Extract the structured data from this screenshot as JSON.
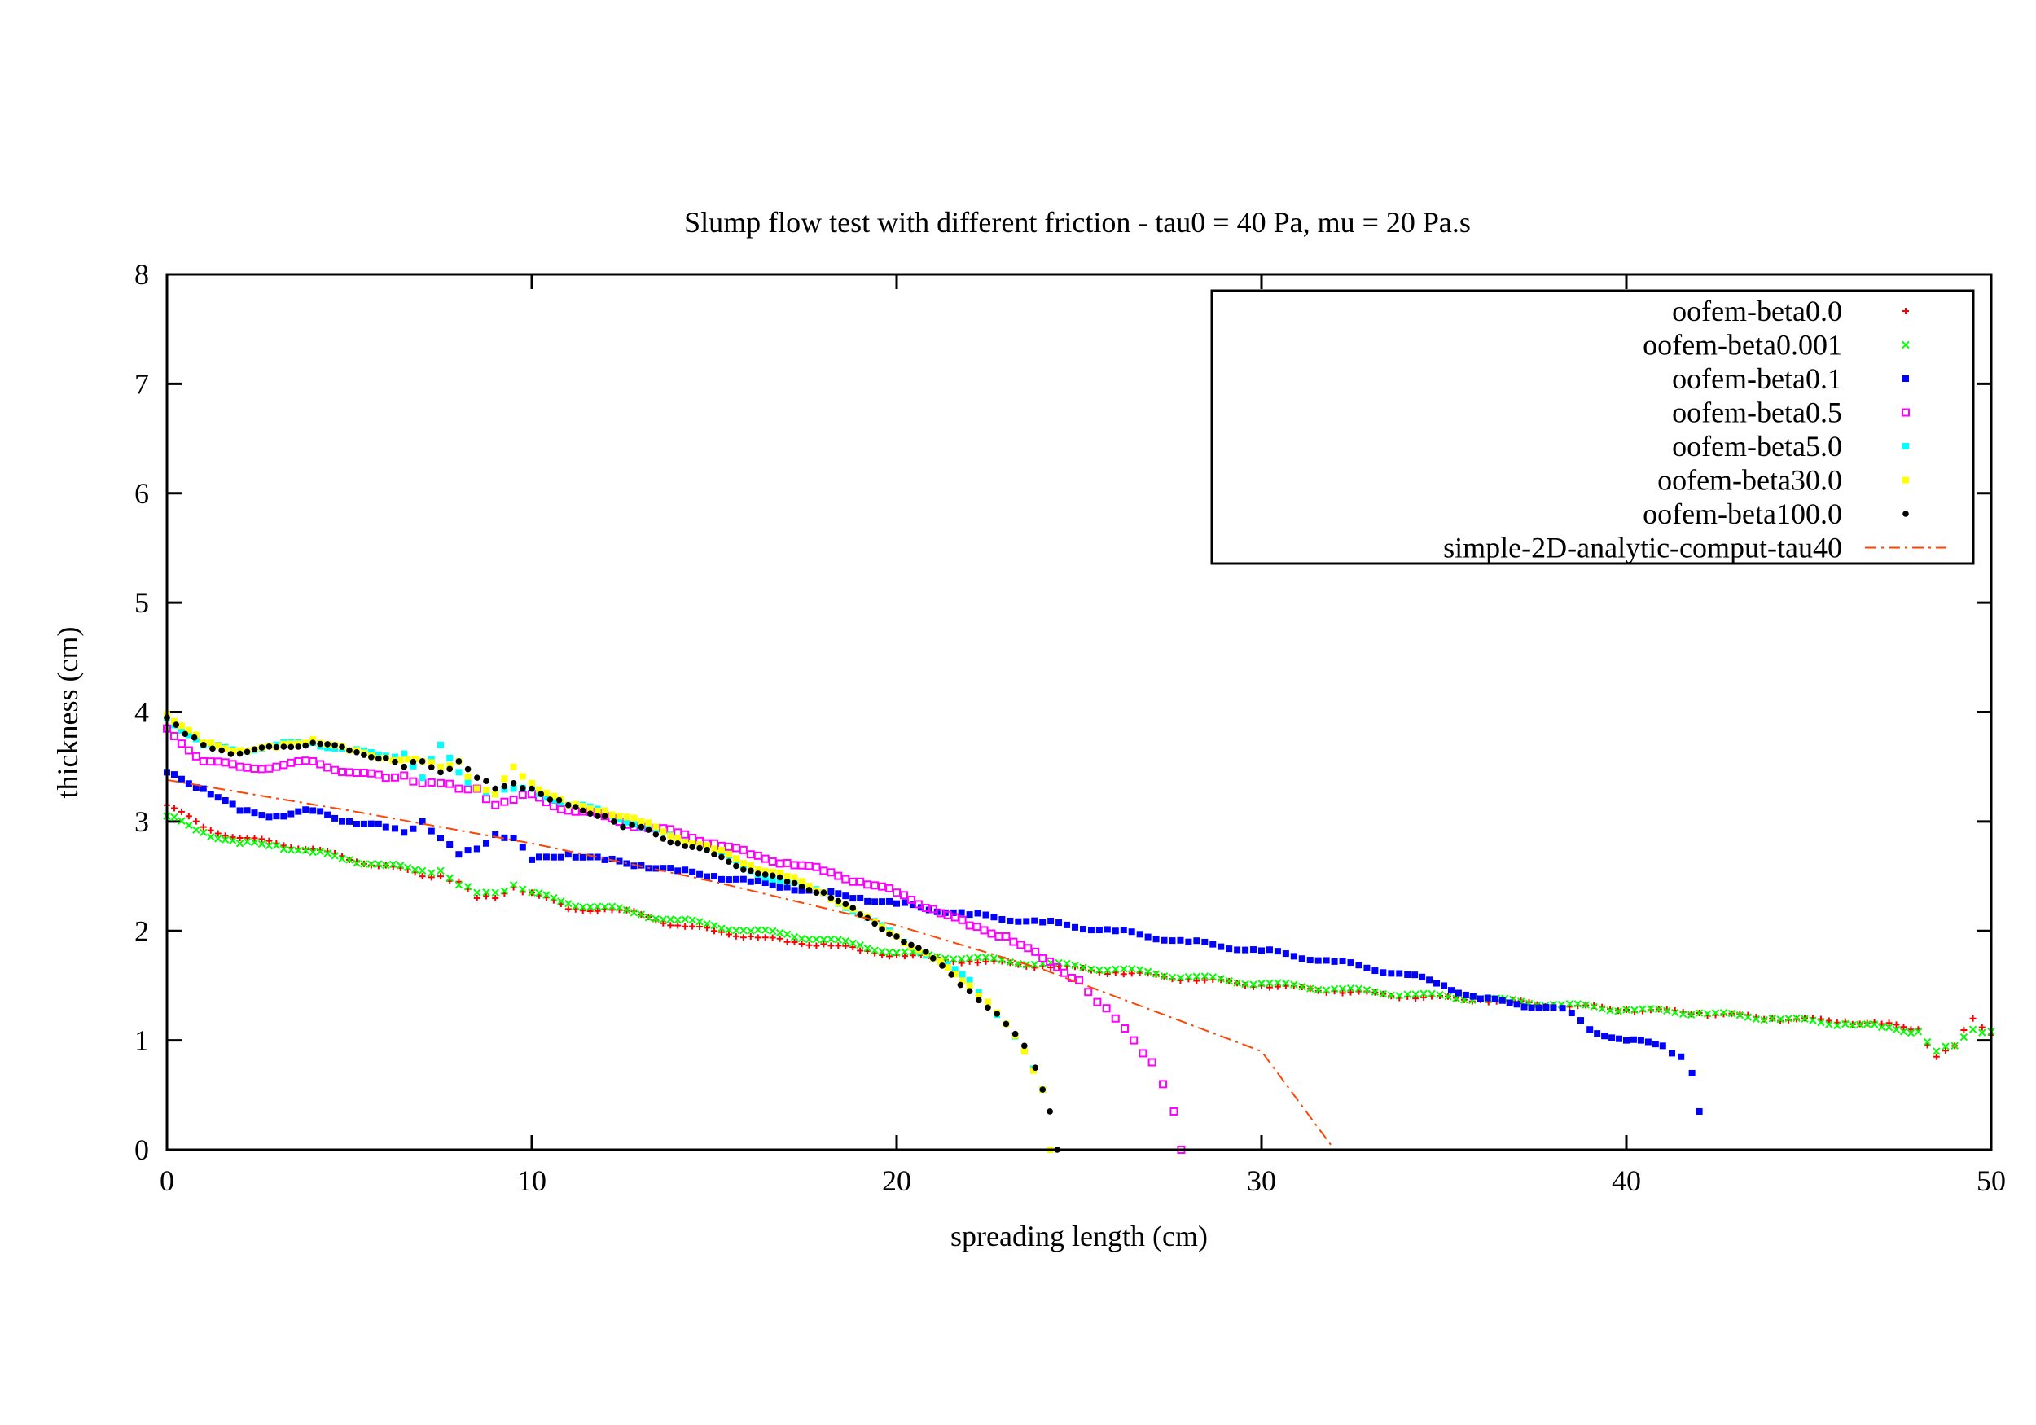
{
  "chart_data": {
    "type": "scatter",
    "title": "Slump flow test with different friction - tau0 = 40 Pa, mu = 20 Pa.s",
    "xlabel": "spreading length (cm)",
    "ylabel": "thickness (cm)",
    "xlim": [
      0,
      50
    ],
    "ylim": [
      0,
      8
    ],
    "xticks": [
      "0",
      "10",
      "20",
      "30",
      "40",
      "50"
    ],
    "yticks": [
      "0",
      "1",
      "2",
      "3",
      "4",
      "5",
      "6",
      "7",
      "8"
    ],
    "legend_position": "top-right",
    "series": [
      {
        "name": "oofem-beta0.0",
        "marker": "plus",
        "color": "#ff0000",
        "x": [
          0,
          1,
          2,
          3,
          4,
          5,
          6,
          7,
          7.5,
          8,
          8.5,
          9,
          9.5,
          10,
          11,
          12,
          13,
          14,
          15,
          16,
          17,
          18,
          19,
          20,
          22,
          24,
          26,
          28,
          30,
          32,
          34,
          36,
          38,
          40,
          42,
          44,
          46,
          47,
          48,
          48.5,
          49,
          49.5,
          50
        ],
        "y": [
          3.15,
          2.95,
          2.85,
          2.8,
          2.75,
          2.65,
          2.6,
          2.5,
          2.5,
          2.45,
          2.3,
          2.3,
          2.4,
          2.35,
          2.2,
          2.2,
          2.15,
          2.05,
          2.0,
          1.95,
          1.9,
          1.88,
          1.82,
          1.78,
          1.72,
          1.68,
          1.62,
          1.56,
          1.5,
          1.45,
          1.4,
          1.37,
          1.32,
          1.28,
          1.25,
          1.2,
          1.17,
          1.15,
          1.1,
          0.85,
          0.95,
          1.2,
          1.05
        ]
      },
      {
        "name": "oofem-beta0.001",
        "marker": "cross",
        "color": "#00ff00",
        "x": [
          0,
          1,
          2,
          3,
          4,
          5,
          6,
          7,
          7.5,
          8,
          8.5,
          9,
          9.5,
          10,
          11,
          12,
          13,
          14,
          15,
          16,
          17,
          18,
          19,
          20,
          22,
          24,
          26,
          28,
          30,
          32,
          34,
          36,
          38,
          40,
          42,
          44,
          46,
          47,
          48,
          48.5,
          49,
          49.5,
          50
        ],
        "y": [
          3.05,
          2.9,
          2.8,
          2.78,
          2.72,
          2.65,
          2.6,
          2.55,
          2.55,
          2.42,
          2.35,
          2.35,
          2.42,
          2.35,
          2.25,
          2.22,
          2.15,
          2.1,
          2.05,
          2.0,
          1.97,
          1.92,
          1.87,
          1.8,
          1.75,
          1.7,
          1.65,
          1.58,
          1.52,
          1.47,
          1.42,
          1.38,
          1.33,
          1.28,
          1.25,
          1.2,
          1.15,
          1.12,
          1.08,
          0.9,
          0.95,
          1.1,
          1.08
        ]
      },
      {
        "name": "oofem-beta0.1",
        "marker": "square-filled",
        "color": "#0000ff",
        "x": [
          0,
          1,
          2,
          3,
          4,
          5,
          6,
          6.5,
          7,
          7.5,
          8,
          8.5,
          9,
          9.5,
          10,
          11,
          12,
          13,
          14,
          15,
          16,
          17,
          18,
          19,
          20,
          22,
          24,
          26,
          28,
          30,
          32,
          34,
          35,
          36,
          37,
          38,
          38.5,
          39,
          40,
          41,
          41.5,
          41.8,
          42
        ],
        "y": [
          3.45,
          3.3,
          3.1,
          3.05,
          3.1,
          3.0,
          2.95,
          2.9,
          3.0,
          2.85,
          2.7,
          2.75,
          2.88,
          2.85,
          2.65,
          2.7,
          2.65,
          2.6,
          2.55,
          2.5,
          2.45,
          2.4,
          2.35,
          2.3,
          2.25,
          2.15,
          2.08,
          2.0,
          1.9,
          1.82,
          1.72,
          1.6,
          1.5,
          1.38,
          1.33,
          1.3,
          1.25,
          1.1,
          1.0,
          0.95,
          0.85,
          0.7,
          0.35
        ]
      },
      {
        "name": "oofem-beta0.5",
        "marker": "square-open",
        "color": "#ff00ff",
        "x": [
          0,
          1,
          2,
          3,
          4,
          5,
          6,
          6.5,
          7,
          7.5,
          8,
          8.5,
          9,
          9.5,
          10,
          11,
          12,
          13,
          14,
          15,
          16,
          17,
          18,
          19,
          20,
          21,
          22,
          23,
          24,
          25,
          25.5,
          26,
          26.5,
          27,
          27.3,
          27.6,
          27.8
        ],
        "y": [
          3.85,
          3.55,
          3.5,
          3.5,
          3.55,
          3.45,
          3.4,
          3.42,
          3.35,
          3.35,
          3.3,
          3.3,
          3.15,
          3.2,
          3.25,
          3.1,
          3.05,
          2.95,
          2.9,
          2.8,
          2.7,
          2.62,
          2.55,
          2.45,
          2.35,
          2.2,
          2.05,
          1.95,
          1.75,
          1.55,
          1.35,
          1.2,
          1.0,
          0.8,
          0.6,
          0.35,
          0.0
        ]
      },
      {
        "name": "oofem-beta5.0",
        "marker": "square-filled",
        "color": "#00ffff",
        "x": [
          0,
          1,
          2,
          3,
          4,
          5,
          6,
          6.5,
          7,
          7.5,
          8,
          8.5,
          9,
          9.5,
          10,
          11,
          12,
          13,
          14,
          15,
          16,
          17,
          18,
          19,
          20,
          21,
          22,
          22.5,
          23,
          23.5,
          24,
          24.2
        ],
        "y": [
          3.95,
          3.7,
          3.65,
          3.7,
          3.72,
          3.65,
          3.6,
          3.62,
          3.4,
          3.7,
          3.45,
          3.3,
          3.25,
          3.3,
          3.3,
          3.15,
          3.1,
          2.95,
          2.85,
          2.75,
          2.55,
          2.45,
          2.35,
          2.15,
          1.95,
          1.75,
          1.55,
          1.35,
          1.15,
          0.9,
          0.55,
          0.0
        ]
      },
      {
        "name": "oofem-beta30.0",
        "marker": "square-filled",
        "color": "#ffff00",
        "x": [
          0,
          1,
          2,
          3,
          4,
          5,
          6,
          7,
          7.5,
          8,
          8.5,
          9,
          9.5,
          10,
          11,
          12,
          13,
          14,
          15,
          16,
          17,
          18,
          19,
          20,
          21,
          22,
          22.5,
          23,
          23.5,
          24,
          24.2
        ],
        "y": [
          3.98,
          3.72,
          3.65,
          3.68,
          3.75,
          3.65,
          3.58,
          3.55,
          3.5,
          3.55,
          3.3,
          3.25,
          3.5,
          3.35,
          3.15,
          3.1,
          3.0,
          2.85,
          2.75,
          2.6,
          2.5,
          2.35,
          2.15,
          1.95,
          1.75,
          1.5,
          1.35,
          1.15,
          0.9,
          0.55,
          0.0
        ]
      },
      {
        "name": "oofem-beta100.0",
        "marker": "dot",
        "color": "#000000",
        "x": [
          0,
          0.5,
          1,
          1.5,
          2,
          3,
          4,
          5,
          6,
          6.5,
          7,
          7.5,
          8,
          8.5,
          9,
          9.5,
          10,
          10.5,
          11,
          12,
          12.5,
          13,
          14,
          15,
          16,
          17,
          18,
          19,
          20,
          21,
          21.5,
          22,
          22.5,
          23,
          23.5,
          23.8,
          24,
          24.2,
          24.4
        ],
        "y": [
          3.95,
          3.8,
          3.7,
          3.65,
          3.62,
          3.68,
          3.72,
          3.65,
          3.58,
          3.5,
          3.55,
          3.45,
          3.55,
          3.4,
          3.3,
          3.35,
          3.3,
          3.2,
          3.15,
          3.05,
          2.95,
          2.95,
          2.8,
          2.7,
          2.55,
          2.45,
          2.35,
          2.15,
          1.95,
          1.75,
          1.6,
          1.45,
          1.3,
          1.15,
          0.95,
          0.75,
          0.55,
          0.35,
          0.0
        ]
      },
      {
        "name": "simple-2D-analytic-comput-tau40",
        "marker": "line-dashdot",
        "color": "#ff4500",
        "x": [
          0,
          5,
          10,
          15,
          20,
          24,
          26,
          28,
          30,
          31,
          32
        ],
        "y": [
          3.38,
          3.1,
          2.8,
          2.45,
          2.05,
          1.65,
          1.4,
          1.15,
          0.9,
          0.45,
          0.0
        ]
      }
    ]
  }
}
